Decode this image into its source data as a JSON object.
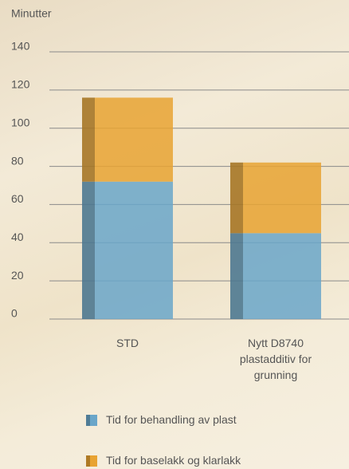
{
  "chart_data": {
    "type": "stacked_bar",
    "y_label": "Minutter",
    "categories": [
      "STD",
      "Nytt D8740 plastadditiv for grunning"
    ],
    "series": [
      {
        "name": "Tid for behandling av plast",
        "color": "#6aa6c9",
        "values": [
          72,
          45
        ]
      },
      {
        "name": "Tid for baselakk og klarlakk",
        "color": "#e8a332",
        "values": [
          44,
          37
        ]
      }
    ],
    "ylim": [
      0,
      140
    ],
    "yticks": [
      0,
      20,
      40,
      60,
      80,
      100,
      120,
      140
    ],
    "grid": true
  }
}
